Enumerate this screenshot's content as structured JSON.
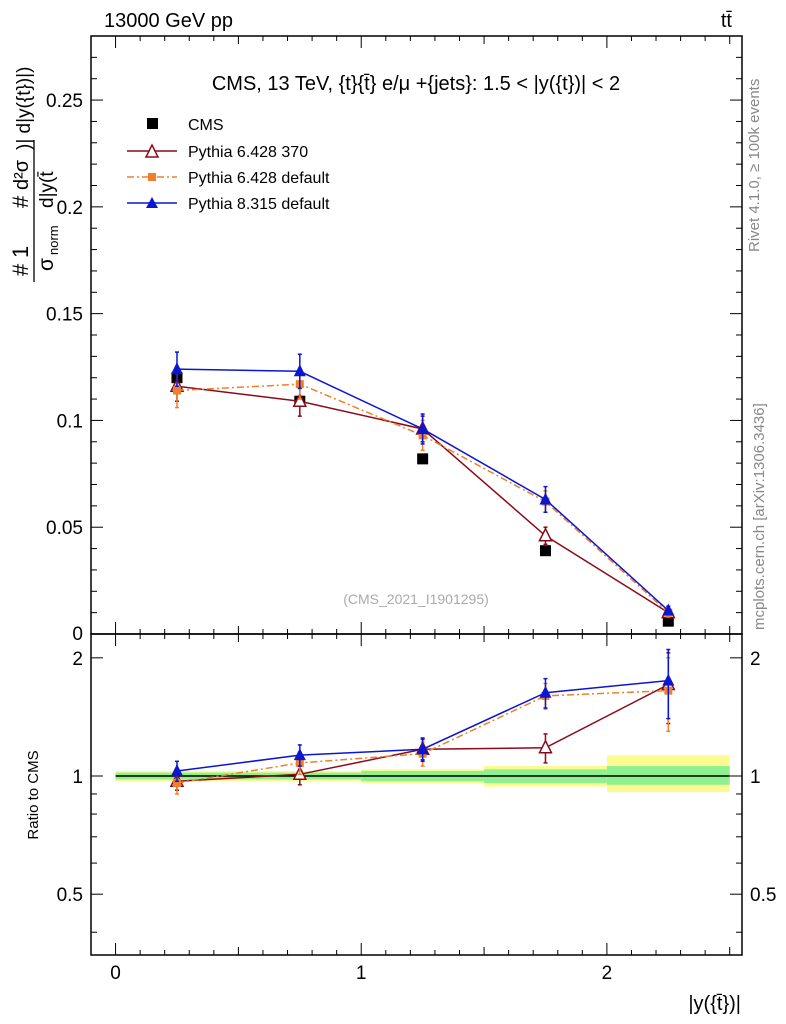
{
  "header": {
    "energy_label": "13000 GeV pp",
    "process_label": "tt̄"
  },
  "side_text": {
    "rivet": "Rivet 4.1.0, ≥ 100k events",
    "mcplots": "mcplots.cern.ch [arXiv:1306.3436]"
  },
  "chart_data": [
    {
      "type": "line",
      "title": "CMS, 13 TeV, {t}{t̄} e/μ +{jets}: 1.5 < |y({t})| < 2",
      "watermark": "(CMS_2021_I1901295)",
      "ylabel": "#1/σnorm #d²σ/d|y(t̄)| d|y({t})|",
      "ylabel_parts": {
        "hash": "#",
        "one": "1",
        "sigma_norm": "σ",
        "norm_sub": "norm",
        "d2sigma": "d²σ",
        "num_tail": ")| d|y({t})|)",
        "den": "d|y(t̄"
      },
      "xlim": [
        -0.1,
        2.55
      ],
      "ylim": [
        0,
        0.28
      ],
      "yticks": [
        0.05,
        0.1,
        0.15,
        0.2,
        0.25
      ],
      "ytick_labels": [
        "0.05",
        "0.1",
        "0.15",
        "0.2",
        "0.25"
      ],
      "y_zero_label": "0",
      "legend": [
        "CMS",
        "Pythia 6.428 370",
        "Pythia 6.428 default",
        "Pythia 8.315 default"
      ],
      "x": [
        0.25,
        0.75,
        1.25,
        1.75,
        2.25
      ],
      "series": [
        {
          "name": "CMS",
          "color": "#000000",
          "values": [
            0.12,
            0.109,
            0.082,
            0.039,
            0.006
          ],
          "err": [
            0,
            0,
            0,
            0,
            0
          ]
        },
        {
          "name": "Pythia 6.428 370",
          "color": "#8b0a1a",
          "values": [
            0.116,
            0.109,
            0.096,
            0.046,
            0.01
          ],
          "err": [
            0.007,
            0.007,
            0.006,
            0.004,
            0.002
          ]
        },
        {
          "name": "Pythia 6.428 default",
          "color": "#f07f2a",
          "values": [
            0.114,
            0.117,
            0.093,
            0.062,
            0.01
          ],
          "err": [
            0.008,
            0.007,
            0.007,
            0.005,
            0.002
          ]
        },
        {
          "name": "Pythia 8.315 default",
          "color": "#0b16d0",
          "values": [
            0.124,
            0.123,
            0.096,
            0.063,
            0.011
          ],
          "err": [
            0.008,
            0.008,
            0.007,
            0.006,
            0.002
          ]
        }
      ]
    },
    {
      "type": "line",
      "ylabel": "Ratio to CMS",
      "xlabel": "|y({t̄})|",
      "xlim": [
        -0.1,
        2.55
      ],
      "ylim": [
        0.35,
        2.3
      ],
      "yticks": [
        0.5,
        1,
        2
      ],
      "ytick_labels": [
        "0.5",
        "1",
        "2"
      ],
      "xticks": [
        0,
        1,
        2
      ],
      "xtick_labels": [
        "0",
        "1",
        "2"
      ],
      "bands": [
        {
          "x0": 0.0,
          "x1": 0.5,
          "inner": [
            0.98,
            1.02
          ],
          "outer": [
            0.97,
            1.03
          ]
        },
        {
          "x0": 0.5,
          "x1": 1.0,
          "inner": [
            0.98,
            1.02
          ],
          "outer": [
            0.97,
            1.03
          ]
        },
        {
          "x0": 1.0,
          "x1": 1.5,
          "inner": [
            0.97,
            1.03
          ],
          "outer": [
            0.96,
            1.04
          ]
        },
        {
          "x0": 1.5,
          "x1": 2.0,
          "inner": [
            0.96,
            1.04
          ],
          "outer": [
            0.94,
            1.06
          ]
        },
        {
          "x0": 2.0,
          "x1": 2.5,
          "inner": [
            0.95,
            1.06
          ],
          "outer": [
            0.91,
            1.13
          ]
        }
      ],
      "x": [
        0.25,
        0.75,
        1.25,
        1.75,
        2.25
      ],
      "series": [
        {
          "name": "Pythia 6.428 370",
          "color": "#8b0a1a",
          "values": [
            0.97,
            1.01,
            1.17,
            1.18,
            1.71
          ],
          "err": [
            0.05,
            0.06,
            0.07,
            0.1,
            0.35
          ]
        },
        {
          "name": "Pythia 6.428 default",
          "color": "#f07f2a",
          "values": [
            0.96,
            1.08,
            1.14,
            1.6,
            1.65
          ],
          "err": [
            0.06,
            0.07,
            0.08,
            0.12,
            0.35
          ]
        },
        {
          "name": "Pythia 8.315 default",
          "color": "#0b16d0",
          "values": [
            1.03,
            1.13,
            1.17,
            1.63,
            1.75
          ],
          "err": [
            0.06,
            0.07,
            0.08,
            0.14,
            0.35
          ]
        }
      ]
    }
  ]
}
